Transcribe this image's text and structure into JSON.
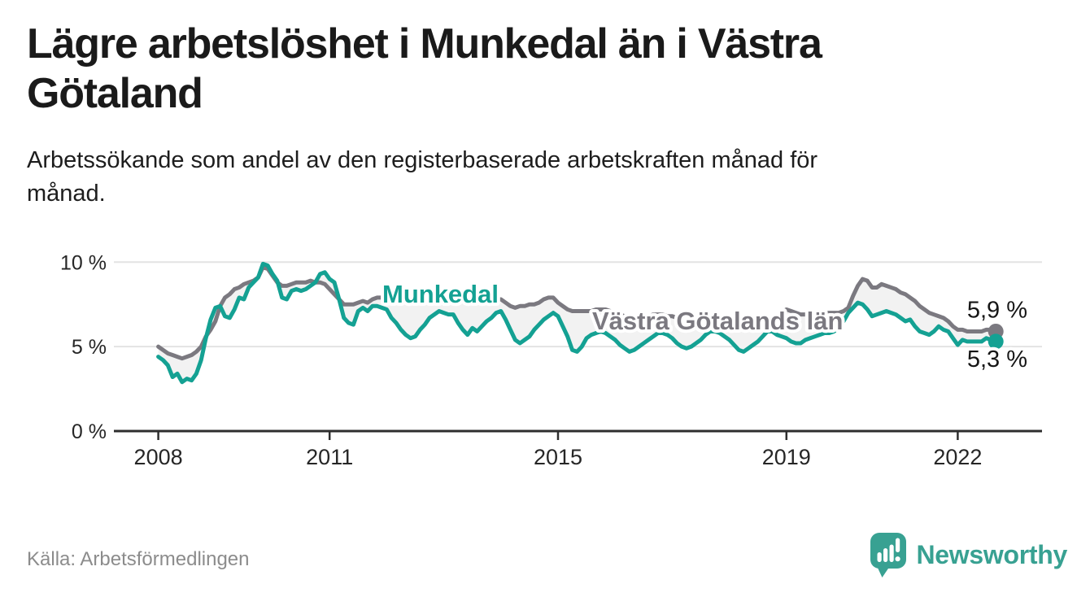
{
  "header": {
    "title_lines": [
      "Lägre arbetslöshet i Munkedal än i Västra",
      "Götaland"
    ],
    "subtitle_lines": [
      "Arbetssökande som andel av den registerbaserade arbetskraften månad för",
      "månad."
    ]
  },
  "footer": {
    "source": "Källa: Arbetsförmedlingen",
    "brand": "Newsworthy",
    "brand_color": "#38a192"
  },
  "chart_data": {
    "type": "line",
    "title": "Lägre arbetslöshet i Munkedal än i Västra Götaland",
    "x_interval": "month",
    "x_start": "2008-01",
    "x_end": "2022-09",
    "x_ticks": [
      {
        "label": "2008",
        "year": 2008
      },
      {
        "label": "2011",
        "year": 2011
      },
      {
        "label": "2015",
        "year": 2015
      },
      {
        "label": "2019",
        "year": 2019
      },
      {
        "label": "2022",
        "year": 2022
      }
    ],
    "y_axis": {
      "range": [
        0,
        10.5
      ],
      "ticks": [
        {
          "label": "0 %",
          "value": 0
        },
        {
          "label": "5 %",
          "value": 5
        },
        {
          "label": "10 %",
          "value": 10
        }
      ]
    },
    "grid": true,
    "legend_position": "inline-labels",
    "band_fill": "#f2f2f2",
    "grid_color": "#e3e3e3",
    "axis_color": "#2e2e2e",
    "tick_label_color": "#262626",
    "value_label_color": "#161616",
    "series": [
      {
        "name": "Västra Götalands län",
        "color": "#7b7980",
        "end_label": "5,9 %",
        "label_pos": {
          "x": 728,
          "y": 405
        },
        "end_label_offset": -17,
        "values": [
          5.0,
          4.8,
          4.6,
          4.5,
          4.4,
          4.3,
          4.4,
          4.5,
          4.7,
          5.0,
          5.6,
          6.0,
          6.5,
          7.4,
          7.9,
          8.1,
          8.4,
          8.5,
          8.7,
          8.8,
          8.9,
          9.1,
          9.7,
          9.6,
          9.2,
          8.8,
          8.6,
          8.6,
          8.7,
          8.8,
          8.8,
          8.8,
          8.9,
          8.8,
          8.8,
          8.7,
          8.4,
          8.1,
          7.8,
          7.5,
          7.5,
          7.5,
          7.6,
          7.7,
          7.6,
          7.8,
          7.9,
          7.9,
          7.9,
          7.8,
          7.7,
          7.7,
          7.8,
          7.8,
          7.9,
          8.0,
          8.1,
          8.1,
          8.2,
          8.2,
          8.2,
          8.2,
          8.1,
          8.0,
          7.9,
          7.8,
          7.8,
          7.8,
          7.9,
          7.9,
          7.9,
          7.8,
          7.8,
          7.6,
          7.4,
          7.3,
          7.4,
          7.4,
          7.5,
          7.5,
          7.6,
          7.8,
          7.9,
          7.9,
          7.6,
          7.4,
          7.2,
          7.1,
          7.1,
          7.1,
          7.1,
          7.1,
          7.2,
          7.2,
          7.2,
          7.1,
          7.0,
          6.9,
          6.8,
          6.7,
          6.7,
          6.7,
          6.8,
          6.8,
          6.9,
          6.9,
          6.9,
          6.8,
          6.8,
          6.7,
          6.6,
          6.5,
          6.5,
          6.5,
          6.6,
          6.6,
          6.7,
          6.7,
          6.7,
          6.6,
          6.5,
          6.4,
          6.3,
          6.3,
          6.3,
          6.3,
          6.4,
          6.4,
          6.5,
          6.6,
          6.8,
          7.0,
          7.2,
          7.1,
          7.0,
          6.9,
          6.9,
          6.9,
          7.0,
          7.0,
          7.0,
          7.0,
          7.0,
          7.0,
          7.1,
          7.3,
          8.0,
          8.6,
          9.0,
          8.9,
          8.5,
          8.5,
          8.7,
          8.6,
          8.5,
          8.4,
          8.2,
          8.1,
          7.9,
          7.7,
          7.4,
          7.2,
          7.0,
          6.9,
          6.8,
          6.7,
          6.5,
          6.2,
          6.0,
          6.0,
          5.9,
          5.9,
          5.9,
          5.9,
          6.0,
          6.0,
          5.9
        ]
      },
      {
        "name": "Munkedal",
        "color": "#14a193",
        "end_label": "5,3 %",
        "label_pos": {
          "x": 470,
          "y": 372
        },
        "end_label_offset": 31,
        "values": [
          4.4,
          4.2,
          3.9,
          3.2,
          3.4,
          2.9,
          3.1,
          3.0,
          3.4,
          4.2,
          5.5,
          6.6,
          7.3,
          7.4,
          6.8,
          6.7,
          7.2,
          7.9,
          7.8,
          8.5,
          8.8,
          9.1,
          9.9,
          9.8,
          9.3,
          8.9,
          7.9,
          7.8,
          8.3,
          8.4,
          8.3,
          8.4,
          8.6,
          8.8,
          9.3,
          9.4,
          9.0,
          8.8,
          7.8,
          6.7,
          6.4,
          6.3,
          7.1,
          7.3,
          7.1,
          7.4,
          7.4,
          7.3,
          7.2,
          6.7,
          6.4,
          6.0,
          5.7,
          5.5,
          5.6,
          6.0,
          6.3,
          6.7,
          6.9,
          7.1,
          7.0,
          6.9,
          6.9,
          6.4,
          6.0,
          5.7,
          6.1,
          5.9,
          6.2,
          6.5,
          6.7,
          7.0,
          7.1,
          6.6,
          6.0,
          5.4,
          5.2,
          5.4,
          5.6,
          6.0,
          6.3,
          6.6,
          6.8,
          7.0,
          6.8,
          6.2,
          5.6,
          4.8,
          4.7,
          5.0,
          5.5,
          5.7,
          5.8,
          5.9,
          5.8,
          5.6,
          5.4,
          5.1,
          4.9,
          4.7,
          4.8,
          5.0,
          5.2,
          5.4,
          5.6,
          5.8,
          5.8,
          5.7,
          5.5,
          5.2,
          5.0,
          4.9,
          5.0,
          5.2,
          5.4,
          5.7,
          5.9,
          5.9,
          5.8,
          5.6,
          5.4,
          5.1,
          4.8,
          4.7,
          4.9,
          5.1,
          5.3,
          5.6,
          5.9,
          5.9,
          5.7,
          5.6,
          5.5,
          5.3,
          5.2,
          5.2,
          5.4,
          5.5,
          5.6,
          5.7,
          5.8,
          5.8,
          5.9,
          6.1,
          6.5,
          7.0,
          7.3,
          7.6,
          7.5,
          7.2,
          6.8,
          6.9,
          7.0,
          7.1,
          7.0,
          6.9,
          6.7,
          6.5,
          6.6,
          6.2,
          5.9,
          5.8,
          5.7,
          5.9,
          6.2,
          6.0,
          5.9,
          5.5,
          5.1,
          5.4,
          5.3,
          5.3,
          5.3,
          5.3,
          5.5,
          5.4,
          5.3
        ]
      }
    ]
  }
}
